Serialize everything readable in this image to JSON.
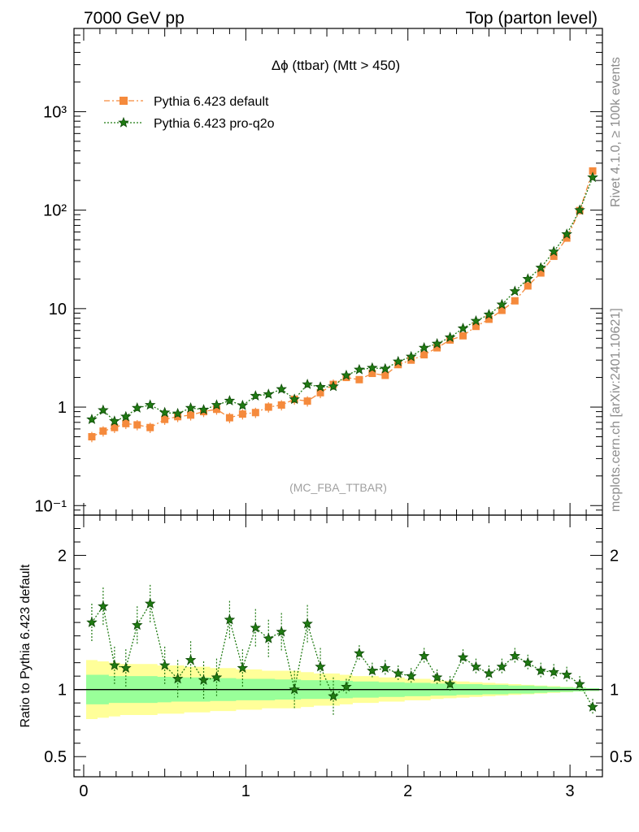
{
  "header": {
    "left": "7000 GeV pp",
    "right": "Top (parton level)"
  },
  "side_labels": {
    "rivet": "Rivet 4.1.0, ≥ 100k events",
    "mcplots": "mcplots.cern.ch [arXiv:2401.10621]"
  },
  "plot": {
    "title": "Δϕ (ttbar) (Mtt > 450)",
    "watermark": "(MC_FBA_TTBAR)"
  },
  "colors": {
    "default": "#f58a3c",
    "proq2o": "#1f7a12",
    "band_inner": "#99ff99",
    "band_outer": "#ffff99"
  },
  "chart_data": [
    {
      "type": "line",
      "panel": "main",
      "yscale": "log",
      "ylim": [
        0.08,
        7000
      ],
      "xlim": [
        -0.06,
        3.2
      ],
      "y_ticks": [
        "10⁻¹",
        "1",
        "10",
        "10²",
        "10³"
      ],
      "x": [
        0.05,
        0.12,
        0.19,
        0.26,
        0.33,
        0.41,
        0.5,
        0.58,
        0.66,
        0.74,
        0.82,
        0.9,
        0.98,
        1.06,
        1.14,
        1.22,
        1.3,
        1.38,
        1.46,
        1.54,
        1.62,
        1.7,
        1.78,
        1.86,
        1.94,
        2.02,
        2.1,
        2.18,
        2.26,
        2.34,
        2.42,
        2.5,
        2.58,
        2.66,
        2.74,
        2.82,
        2.9,
        2.98,
        3.06,
        3.14
      ],
      "series": [
        {
          "name": "Pythia 6.423 default",
          "marker": "square",
          "values": [
            0.5,
            0.57,
            0.62,
            0.68,
            0.66,
            0.62,
            0.75,
            0.8,
            0.83,
            0.9,
            0.95,
            0.78,
            0.85,
            0.88,
            1.0,
            1.05,
            1.2,
            1.15,
            1.4,
            1.7,
            2.0,
            1.9,
            2.2,
            2.1,
            2.7,
            3.0,
            3.4,
            4.0,
            4.8,
            5.3,
            6.6,
            7.8,
            9.6,
            12.0,
            17.0,
            23.0,
            34.0,
            52.0,
            99.0,
            250.0
          ]
        },
        {
          "name": "Pythia 6.423 pro-q2o",
          "marker": "star",
          "values": [
            0.75,
            0.93,
            0.72,
            0.8,
            0.98,
            1.05,
            0.88,
            0.86,
            0.98,
            0.94,
            1.05,
            1.16,
            1.04,
            1.3,
            1.35,
            1.52,
            1.2,
            1.7,
            1.6,
            1.62,
            2.1,
            2.4,
            2.5,
            2.45,
            2.9,
            3.25,
            4.0,
            4.4,
            5.1,
            6.3,
            7.5,
            8.7,
            11.0,
            15.0,
            20.0,
            26.0,
            38.0,
            57.0,
            100.0,
            215.0
          ]
        }
      ]
    },
    {
      "type": "line",
      "panel": "ratio",
      "ylabel": "Ratio to Pythia 6.423 default",
      "ylim": [
        0.35,
        2.3
      ],
      "xlim": [
        -0.06,
        3.2
      ],
      "y_ticks": [
        "0.5",
        "1",
        "2"
      ],
      "x_ticks": [
        "0",
        "1",
        "2",
        "3"
      ],
      "x": [
        0.05,
        0.12,
        0.19,
        0.26,
        0.33,
        0.41,
        0.5,
        0.58,
        0.66,
        0.74,
        0.82,
        0.9,
        0.98,
        1.06,
        1.14,
        1.22,
        1.3,
        1.38,
        1.46,
        1.54,
        1.62,
        1.7,
        1.78,
        1.86,
        1.94,
        2.02,
        2.1,
        2.18,
        2.26,
        2.34,
        2.42,
        2.5,
        2.58,
        2.66,
        2.74,
        2.82,
        2.9,
        2.98,
        3.06,
        3.14
      ],
      "series": [
        {
          "name": "Pythia 6.423 pro-q2o",
          "values": [
            1.5,
            1.62,
            1.18,
            1.16,
            1.48,
            1.64,
            1.18,
            1.08,
            1.22,
            1.07,
            1.09,
            1.52,
            1.16,
            1.46,
            1.38,
            1.43,
            1.0,
            1.49,
            1.17,
            0.95,
            1.02,
            1.27,
            1.14,
            1.16,
            1.12,
            1.1,
            1.25,
            1.09,
            1.04,
            1.24,
            1.17,
            1.12,
            1.17,
            1.25,
            1.2,
            1.14,
            1.13,
            1.11,
            1.04,
            0.87
          ]
        }
      ],
      "band_inner": [
        0.11,
        0.11,
        0.1,
        0.1,
        0.1,
        0.1,
        0.095,
        0.09,
        0.09,
        0.09,
        0.085,
        0.085,
        0.08,
        0.08,
        0.08,
        0.075,
        0.075,
        0.07,
        0.07,
        0.07,
        0.065,
        0.06,
        0.06,
        0.055,
        0.055,
        0.05,
        0.05,
        0.045,
        0.045,
        0.04,
        0.04,
        0.035,
        0.035,
        0.03,
        0.03,
        0.025,
        0.02,
        0.018,
        0.014,
        0.01
      ],
      "band_outer": [
        0.22,
        0.21,
        0.2,
        0.19,
        0.19,
        0.19,
        0.18,
        0.18,
        0.17,
        0.17,
        0.16,
        0.16,
        0.15,
        0.15,
        0.14,
        0.14,
        0.14,
        0.13,
        0.12,
        0.12,
        0.11,
        0.1,
        0.1,
        0.09,
        0.09,
        0.08,
        0.08,
        0.07,
        0.065,
        0.06,
        0.055,
        0.05,
        0.045,
        0.04,
        0.035,
        0.03,
        0.025,
        0.02,
        0.015,
        0.01
      ]
    }
  ]
}
